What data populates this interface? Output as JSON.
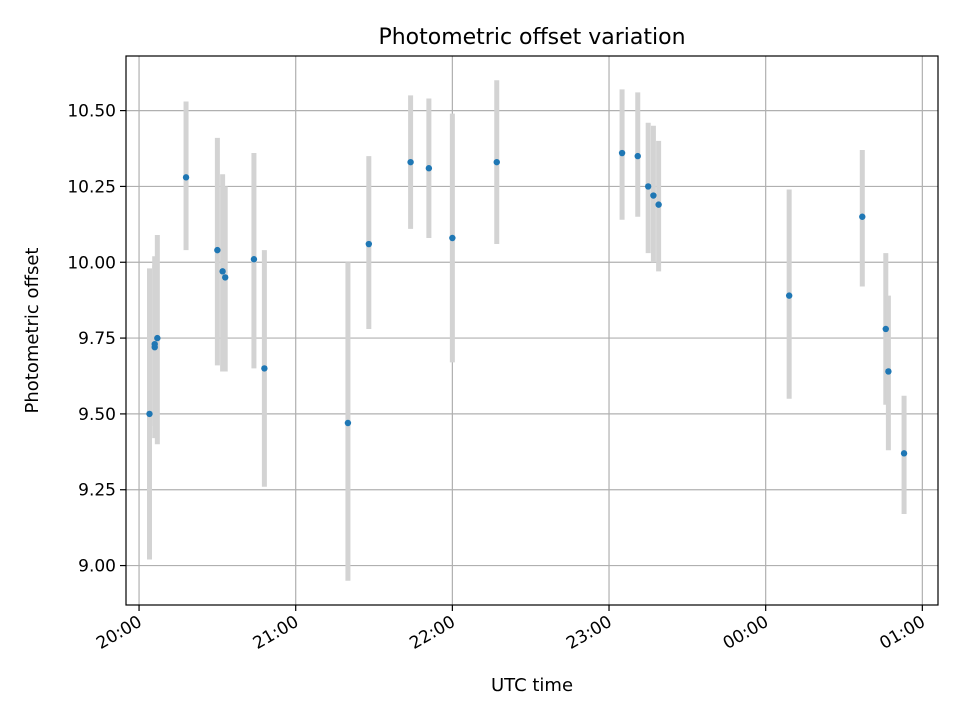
{
  "chart_data": {
    "type": "scatter",
    "title": "Photometric offset variation",
    "xlabel": "UTC time",
    "ylabel": "Photometric offset",
    "x_axis_type": "time",
    "xlim": [
      "19:55",
      "01:06"
    ],
    "ylim": [
      8.87,
      10.68
    ],
    "x_ticks": [
      "20:00",
      "21:00",
      "22:00",
      "23:00",
      "00:00",
      "01:00"
    ],
    "y_ticks": [
      "9.00",
      "9.25",
      "9.50",
      "9.75",
      "10.00",
      "10.25",
      "10.50"
    ],
    "grid": true,
    "legend": "none",
    "point_color": "#1f77b4",
    "errorbar_color": "#d3d3d3",
    "points": [
      {
        "t": "20:04",
        "y": 9.5,
        "lo": 9.02,
        "hi": 9.98
      },
      {
        "t": "20:06",
        "y": 9.72,
        "lo": 9.46,
        "hi": 9.99
      },
      {
        "t": "20:06",
        "y": 9.73,
        "lo": 9.42,
        "hi": 10.02
      },
      {
        "t": "20:07",
        "y": 9.75,
        "lo": 9.4,
        "hi": 10.09
      },
      {
        "t": "20:18",
        "y": 10.28,
        "lo": 10.04,
        "hi": 10.53
      },
      {
        "t": "20:30",
        "y": 10.04,
        "lo": 9.66,
        "hi": 10.41
      },
      {
        "t": "20:32",
        "y": 9.97,
        "lo": 9.64,
        "hi": 10.29
      },
      {
        "t": "20:33",
        "y": 9.95,
        "lo": 9.64,
        "hi": 10.25
      },
      {
        "t": "20:44",
        "y": 10.01,
        "lo": 9.65,
        "hi": 10.36
      },
      {
        "t": "20:48",
        "y": 9.65,
        "lo": 9.26,
        "hi": 10.04
      },
      {
        "t": "21:20",
        "y": 9.47,
        "lo": 8.95,
        "hi": 10.0
      },
      {
        "t": "21:28",
        "y": 10.06,
        "lo": 9.78,
        "hi": 10.35
      },
      {
        "t": "21:44",
        "y": 10.33,
        "lo": 10.11,
        "hi": 10.55
      },
      {
        "t": "21:51",
        "y": 10.31,
        "lo": 10.08,
        "hi": 10.54
      },
      {
        "t": "22:00",
        "y": 10.08,
        "lo": 9.67,
        "hi": 10.49
      },
      {
        "t": "22:17",
        "y": 10.33,
        "lo": 10.06,
        "hi": 10.6
      },
      {
        "t": "23:05",
        "y": 10.36,
        "lo": 10.14,
        "hi": 10.57
      },
      {
        "t": "23:11",
        "y": 10.35,
        "lo": 10.15,
        "hi": 10.56
      },
      {
        "t": "23:15",
        "y": 10.25,
        "lo": 10.03,
        "hi": 10.46
      },
      {
        "t": "23:17",
        "y": 10.22,
        "lo": 10.0,
        "hi": 10.45
      },
      {
        "t": "23:19",
        "y": 10.19,
        "lo": 9.97,
        "hi": 10.4
      },
      {
        "t": "00:09",
        "y": 9.89,
        "lo": 9.55,
        "hi": 10.24
      },
      {
        "t": "00:37",
        "y": 10.15,
        "lo": 9.92,
        "hi": 10.37
      },
      {
        "t": "00:46",
        "y": 9.78,
        "lo": 9.53,
        "hi": 10.03
      },
      {
        "t": "00:47",
        "y": 9.64,
        "lo": 9.38,
        "hi": 9.89
      },
      {
        "t": "00:53",
        "y": 9.37,
        "lo": 9.17,
        "hi": 9.56
      }
    ]
  }
}
